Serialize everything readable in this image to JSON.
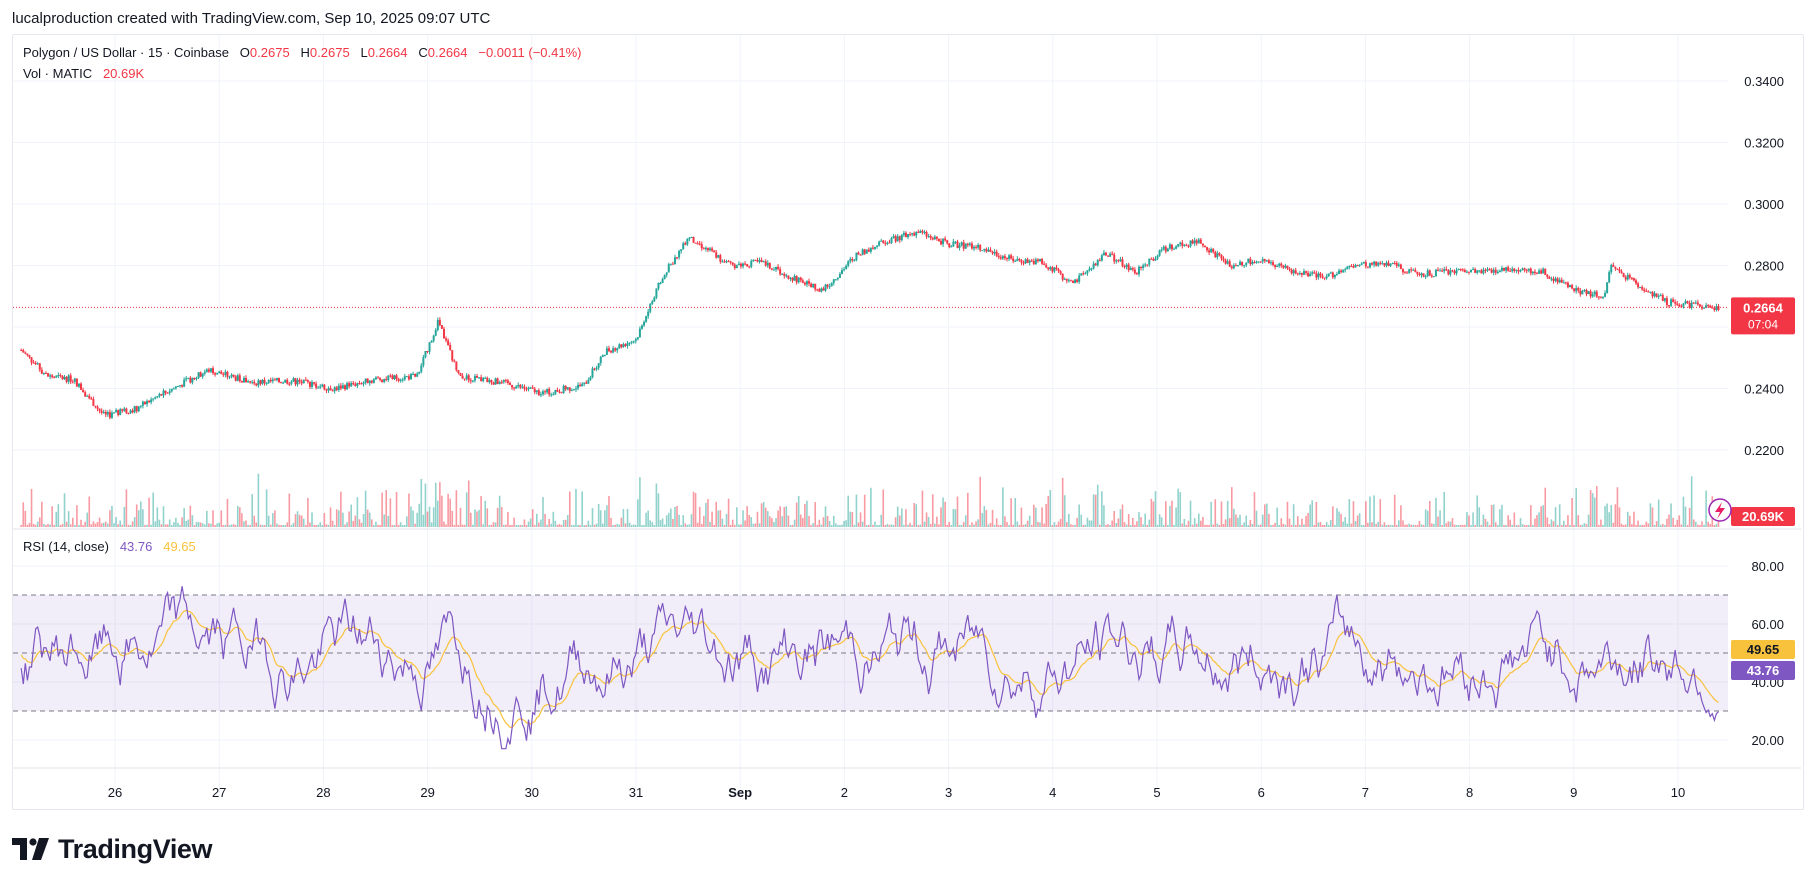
{
  "attribution": "lucalproduction created with TradingView.com, Sep 10, 2025 09:07 UTC",
  "brand": "TradingView",
  "colors": {
    "up": "#26a69a",
    "down": "#f23645",
    "rsi": "#7e57c2",
    "rsi_ma": "#f9c23c",
    "grid": "#f0f3fa"
  },
  "header": {
    "symbol": "Polygon / US Dollar · 15 · Coinbase",
    "o_key": "O",
    "o": "0.2675",
    "h_key": "H",
    "h": "0.2675",
    "l_key": "L",
    "l": "0.2664",
    "c_key": "C",
    "c": "0.2664",
    "change": "−0.0011 (−0.41%)",
    "vol_label": "Vol · MATIC",
    "vol_value": "20.69K"
  },
  "rsi_header": {
    "label": "RSI (14, close)",
    "value": "43.76",
    "ma_value": "49.65"
  },
  "price_tag": {
    "price": "0.2664",
    "countdown": "07:04"
  },
  "volume_tag": "20.69K",
  "rsi_tags": {
    "ma": "49.65",
    "rsi": "43.76"
  },
  "chart_data": {
    "type": "candlestick",
    "title": "Polygon / US Dollar · 15 · Coinbase",
    "x_ticks": [
      "26",
      "27",
      "28",
      "29",
      "30",
      "31",
      "Sep",
      "2",
      "3",
      "4",
      "5",
      "6",
      "7",
      "8",
      "9",
      "10"
    ],
    "price_axis": {
      "ticks": [
        "0.2200",
        "0.2400",
        "0.2600",
        "0.2800",
        "0.3000",
        "0.3200",
        "0.3400"
      ],
      "ylim": [
        0.2,
        0.35
      ]
    },
    "rsi_axis": {
      "ticks": [
        "20.00",
        "40.00",
        "60.00",
        "80.00"
      ],
      "ylim": [
        10,
        90
      ],
      "bands": [
        30,
        50,
        70
      ]
    },
    "last_price": 0.2664,
    "price_path": [
      {
        "t": 25.1,
        "v": 0.2525
      },
      {
        "t": 25.35,
        "v": 0.244
      },
      {
        "t": 25.6,
        "v": 0.243
      },
      {
        "t": 25.9,
        "v": 0.231
      },
      {
        "t": 26.2,
        "v": 0.2335
      },
      {
        "t": 26.5,
        "v": 0.239
      },
      {
        "t": 26.9,
        "v": 0.246
      },
      {
        "t": 27.3,
        "v": 0.242
      },
      {
        "t": 27.7,
        "v": 0.2425
      },
      {
        "t": 28.1,
        "v": 0.24
      },
      {
        "t": 28.5,
        "v": 0.243
      },
      {
        "t": 28.9,
        "v": 0.244
      },
      {
        "t": 29.1,
        "v": 0.262
      },
      {
        "t": 29.3,
        "v": 0.244
      },
      {
        "t": 29.7,
        "v": 0.242
      },
      {
        "t": 30.1,
        "v": 0.2385
      },
      {
        "t": 30.5,
        "v": 0.241
      },
      {
        "t": 30.7,
        "v": 0.252
      },
      {
        "t": 31.0,
        "v": 0.256
      },
      {
        "t": 31.25,
        "v": 0.276
      },
      {
        "t": 31.5,
        "v": 0.289
      },
      {
        "t": 31.7,
        "v": 0.285
      },
      {
        "t": 31.9,
        "v": 0.28
      },
      {
        "t": 32.2,
        "v": 0.281
      },
      {
        "t": 32.5,
        "v": 0.276
      },
      {
        "t": 32.8,
        "v": 0.272
      },
      {
        "t": 33.1,
        "v": 0.283
      },
      {
        "t": 33.4,
        "v": 0.288
      },
      {
        "t": 33.7,
        "v": 0.291
      },
      {
        "t": 34.0,
        "v": 0.287
      },
      {
        "t": 34.3,
        "v": 0.286
      },
      {
        "t": 34.6,
        "v": 0.282
      },
      {
        "t": 34.9,
        "v": 0.281
      },
      {
        "t": 35.2,
        "v": 0.274
      },
      {
        "t": 35.5,
        "v": 0.284
      },
      {
        "t": 35.8,
        "v": 0.278
      },
      {
        "t": 36.1,
        "v": 0.286
      },
      {
        "t": 36.4,
        "v": 0.288
      },
      {
        "t": 36.7,
        "v": 0.28
      },
      {
        "t": 37.0,
        "v": 0.282
      },
      {
        "t": 37.3,
        "v": 0.278
      },
      {
        "t": 37.6,
        "v": 0.276
      },
      {
        "t": 37.9,
        "v": 0.28
      },
      {
        "t": 38.2,
        "v": 0.281
      },
      {
        "t": 38.5,
        "v": 0.277
      },
      {
        "t": 38.8,
        "v": 0.278
      },
      {
        "t": 39.1,
        "v": 0.278
      },
      {
        "t": 39.4,
        "v": 0.279
      },
      {
        "t": 39.7,
        "v": 0.278
      },
      {
        "t": 40.0,
        "v": 0.272
      },
      {
        "t": 40.3,
        "v": 0.27
      },
      {
        "t": 40.35,
        "v": 0.28
      },
      {
        "t": 40.6,
        "v": 0.274
      },
      {
        "t": 40.9,
        "v": 0.268
      },
      {
        "t": 41.2,
        "v": 0.267
      },
      {
        "t": 41.4,
        "v": 0.2664
      }
    ]
  }
}
